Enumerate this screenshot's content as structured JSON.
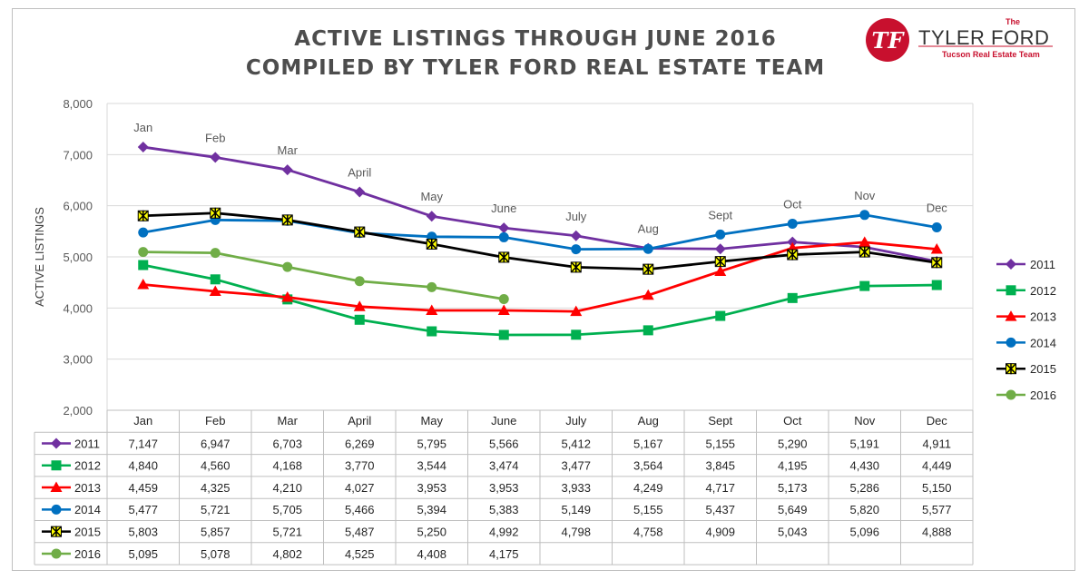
{
  "title_line1": "ACTIVE LISTINGS THROUGH JUNE 2016",
  "title_line2": "COMPILED BY TYLER FORD REAL ESTATE TEAM",
  "logo": {
    "mark": "TF",
    "small": "The",
    "name": "TYLER FORD",
    "tagline": "Tucson Real Estate Team"
  },
  "colors": {
    "2011": "#7030a0",
    "2012": "#00b050",
    "2013": "#ff0000",
    "2014": "#0070c0",
    "2015": "#000000",
    "2016": "#70ad47",
    "brand_red": "#c8102e"
  },
  "chart_data": {
    "type": "line",
    "title": "ACTIVE LISTINGS THROUGH JUNE 2016",
    "subtitle": "COMPILED BY TYLER FORD REAL ESTATE TEAM",
    "ylabel": "ACTIVE LISTINGS",
    "xlabel": "",
    "ylim": [
      2000,
      8000
    ],
    "yticks": [
      "2,000",
      "3,000",
      "4,000",
      "5,000",
      "6,000",
      "7,000",
      "8,000"
    ],
    "grid": "horizontal",
    "legend_position": "right",
    "categories": [
      "Jan",
      "Feb",
      "Mar",
      "April",
      "May",
      "June",
      "July",
      "Aug",
      "Sept",
      "Oct",
      "Nov",
      "Dec"
    ],
    "series": [
      {
        "name": "2011",
        "marker": "diamond",
        "values": [
          7147,
          6947,
          6703,
          6269,
          5795,
          5566,
          5412,
          5167,
          5155,
          5290,
          5191,
          4911
        ],
        "labels": [
          "7,147",
          "6,947",
          "6,703",
          "6,269",
          "5,795",
          "5,566",
          "5,412",
          "5,167",
          "5,155",
          "5,290",
          "5,191",
          "4,911"
        ]
      },
      {
        "name": "2012",
        "marker": "square",
        "values": [
          4840,
          4560,
          4168,
          3770,
          3544,
          3474,
          3477,
          3564,
          3845,
          4195,
          4430,
          4449
        ],
        "labels": [
          "4,840",
          "4,560",
          "4,168",
          "3,770",
          "3,544",
          "3,474",
          "3,477",
          "3,564",
          "3,845",
          "4,195",
          "4,430",
          "4,449"
        ]
      },
      {
        "name": "2013",
        "marker": "triangle",
        "values": [
          4459,
          4325,
          4210,
          4027,
          3953,
          3953,
          3933,
          4249,
          4717,
          5173,
          5286,
          5150
        ],
        "labels": [
          "4,459",
          "4,325",
          "4,210",
          "4,027",
          "3,953",
          "3,953",
          "3,933",
          "4,249",
          "4,717",
          "5,173",
          "5,286",
          "5,150"
        ]
      },
      {
        "name": "2014",
        "marker": "circle",
        "values": [
          5477,
          5721,
          5705,
          5466,
          5394,
          5383,
          5149,
          5155,
          5437,
          5649,
          5820,
          5577
        ],
        "labels": [
          "5,477",
          "5,721",
          "5,705",
          "5,466",
          "5,394",
          "5,383",
          "5,149",
          "5,155",
          "5,437",
          "5,649",
          "5,820",
          "5,577"
        ]
      },
      {
        "name": "2015",
        "marker": "star",
        "values": [
          5803,
          5857,
          5721,
          5487,
          5250,
          4992,
          4798,
          4758,
          4909,
          5043,
          5096,
          4888
        ],
        "labels": [
          "5,803",
          "5,857",
          "5,721",
          "5,487",
          "5,250",
          "4,992",
          "4,798",
          "4,758",
          "4,909",
          "5,043",
          "5,096",
          "4,888"
        ]
      },
      {
        "name": "2016",
        "marker": "circle",
        "values": [
          5095,
          5078,
          4802,
          4525,
          4408,
          4175,
          null,
          null,
          null,
          null,
          null,
          null
        ],
        "labels": [
          "5,095",
          "5,078",
          "4,802",
          "4,525",
          "4,408",
          "4,175",
          "",
          "",
          "",
          "",
          "",
          ""
        ]
      }
    ]
  }
}
